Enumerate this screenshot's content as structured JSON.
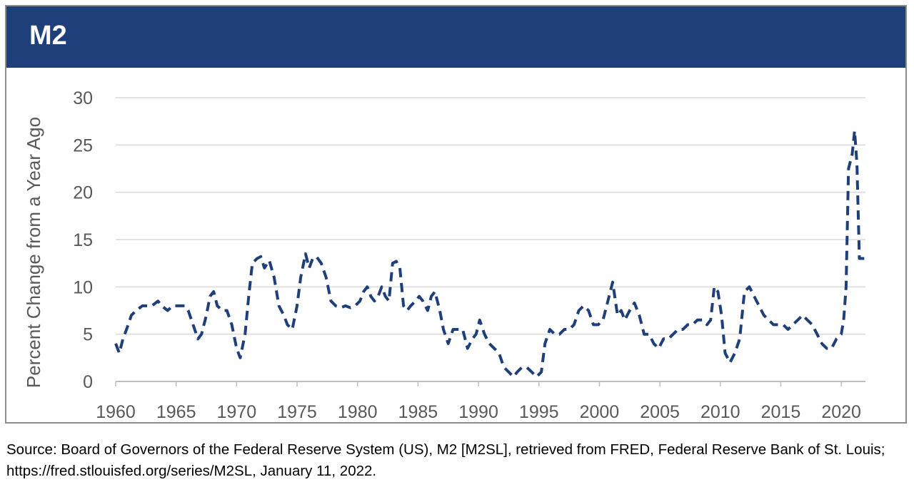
{
  "chart_data": {
    "type": "line",
    "title": "M2",
    "ylabel": "Percent Change from a Year Ago",
    "xlabel": "",
    "xlim": [
      1960,
      2022
    ],
    "ylim": [
      0,
      30
    ],
    "y_ticks": [
      "0",
      "5",
      "10",
      "15",
      "20",
      "25",
      "30"
    ],
    "x_ticks": [
      "1960",
      "1965",
      "1970",
      "1975",
      "1980",
      "1985",
      "1990",
      "1995",
      "2000",
      "2005",
      "2010",
      "2015",
      "2020"
    ],
    "grid": true,
    "legend": "none",
    "line_style": "dashed",
    "line_color": "#1f3f7a",
    "series": [
      {
        "x": [
          1960.0,
          1960.3,
          1960.6,
          1960.9,
          1961.3,
          1961.7,
          1962.2,
          1962.6,
          1963.0,
          1963.5,
          1963.8,
          1964.3,
          1964.7,
          1965.0,
          1965.3,
          1965.7,
          1966.0,
          1966.4,
          1966.8,
          1967.1,
          1967.5,
          1967.8,
          1968.1,
          1968.4,
          1968.8,
          1969.2,
          1969.6,
          1970.0,
          1970.3,
          1970.7,
          1971.0,
          1971.3,
          1971.7,
          1972.0,
          1972.3,
          1972.7,
          1973.1,
          1973.5,
          1973.9,
          1974.2,
          1974.6,
          1975.0,
          1975.3,
          1975.7,
          1976.0,
          1976.3,
          1976.6,
          1977.0,
          1977.4,
          1977.8,
          1978.2,
          1978.6,
          1979.0,
          1979.4,
          1979.8,
          1980.2,
          1980.5,
          1980.8,
          1981.1,
          1981.4,
          1981.7,
          1982.0,
          1982.3,
          1982.6,
          1982.9,
          1983.2,
          1983.5,
          1983.8,
          1984.1,
          1984.4,
          1984.8,
          1985.1,
          1985.4,
          1985.8,
          1986.1,
          1986.4,
          1986.8,
          1987.1,
          1987.5,
          1987.9,
          1988.3,
          1988.7,
          1989.1,
          1989.5,
          1989.8,
          1990.1,
          1990.5,
          1990.9,
          1991.3,
          1991.7,
          1992.1,
          1992.5,
          1992.9,
          1993.2,
          1993.6,
          1994.0,
          1994.4,
          1994.8,
          1995.2,
          1995.5,
          1995.9,
          1996.3,
          1996.7,
          1997.1,
          1997.5,
          1997.9,
          1998.3,
          1998.7,
          1999.1,
          1999.5,
          1999.9,
          2000.3,
          2000.7,
          2001.1,
          2001.5,
          2001.8,
          2002.1,
          2002.5,
          2002.9,
          2003.3,
          2003.7,
          2004.1,
          2004.5,
          2004.9,
          2005.3,
          2005.7,
          2006.1,
          2006.5,
          2006.9,
          2007.3,
          2007.7,
          2008.1,
          2008.5,
          2008.9,
          2009.2,
          2009.5,
          2009.8,
          2010.1,
          2010.4,
          2010.8,
          2011.2,
          2011.6,
          2012.0,
          2012.4,
          2012.8,
          2013.2,
          2013.6,
          2014.0,
          2014.4,
          2014.8,
          2015.2,
          2015.6,
          2016.0,
          2016.4,
          2016.8,
          2017.2,
          2017.6,
          2018.0,
          2018.4,
          2018.8,
          2019.2,
          2019.6,
          2020.0,
          2020.2,
          2020.4,
          2020.6,
          2020.9,
          2021.1,
          2021.3,
          2021.5,
          2021.7,
          2021.9
        ],
        "y": [
          4.0,
          3.0,
          4.5,
          5.5,
          7.0,
          7.5,
          8.0,
          8.0,
          8.0,
          8.5,
          8.0,
          7.5,
          8.0,
          8.0,
          8.0,
          8.0,
          7.5,
          6.0,
          4.5,
          5.0,
          7.0,
          9.0,
          9.5,
          8.0,
          7.5,
          7.5,
          6.0,
          3.5,
          2.5,
          5.0,
          9.0,
          12.5,
          13.0,
          13.2,
          12.0,
          12.8,
          11.0,
          8.0,
          7.0,
          6.0,
          5.5,
          8.0,
          11.0,
          13.5,
          12.0,
          13.0,
          13.2,
          12.5,
          11.0,
          8.5,
          8.0,
          7.8,
          8.0,
          7.8,
          8.0,
          8.5,
          9.5,
          10.0,
          9.0,
          8.5,
          9.0,
          10.0,
          9.0,
          8.5,
          12.5,
          12.7,
          12.0,
          8.0,
          7.5,
          8.0,
          8.5,
          9.0,
          8.5,
          7.5,
          9.0,
          9.5,
          7.5,
          5.5,
          4.0,
          5.5,
          5.5,
          5.5,
          3.5,
          4.5,
          5.0,
          6.5,
          5.0,
          4.0,
          3.5,
          3.0,
          1.5,
          1.0,
          0.5,
          1.0,
          1.5,
          1.5,
          1.0,
          0.5,
          1.0,
          4.0,
          5.5,
          5.0,
          5.0,
          5.5,
          5.5,
          6.0,
          7.5,
          8.0,
          7.5,
          6.0,
          6.0,
          6.5,
          8.5,
          10.5,
          7.0,
          7.5,
          6.5,
          7.5,
          8.3,
          7.0,
          5.0,
          5.0,
          4.0,
          3.5,
          4.5,
          4.5,
          5.0,
          5.5,
          5.5,
          6.0,
          6.0,
          6.5,
          6.5,
          6.0,
          6.5,
          10.0,
          9.5,
          7.0,
          3.0,
          2.0,
          3.0,
          4.5,
          9.5,
          10.0,
          9.0,
          8.0,
          7.0,
          6.5,
          6.0,
          6.0,
          6.0,
          5.5,
          6.0,
          6.5,
          7.0,
          6.5,
          6.0,
          5.0,
          4.0,
          3.5,
          3.5,
          4.5,
          5.0,
          6.5,
          10.0,
          22.5,
          24.0,
          26.5,
          23.0,
          13.0,
          13.0,
          13.0
        ]
      }
    ]
  },
  "source_note": "Source: Board of Governors of the Federal Reserve System (US), M2 [M2SL], retrieved from FRED, Federal Reserve Bank of St. Louis; https://fred.stlouisfed.org/series/M2SL, January 11, 2022."
}
